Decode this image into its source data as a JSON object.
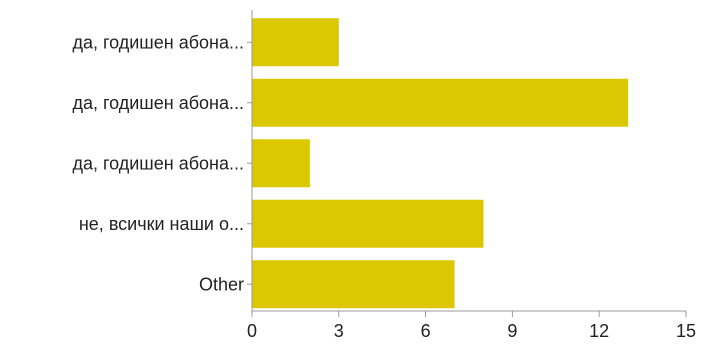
{
  "chart_data": {
    "type": "bar",
    "orientation": "horizontal",
    "categories": [
      "да, годишен абона...",
      "да, годишен абона...",
      "да, годишен абона...",
      "не, всички наши о...",
      "Other"
    ],
    "values": [
      3,
      13,
      2,
      8,
      7
    ],
    "xlim": [
      0,
      15
    ],
    "xticks": [
      0,
      3,
      6,
      9,
      12,
      15
    ],
    "xtick_labels": [
      "0",
      "3",
      "6",
      "9",
      "12",
      "15"
    ],
    "grid": false,
    "bar_color": "#dcc800",
    "axis_color": "#9a9a9a"
  }
}
